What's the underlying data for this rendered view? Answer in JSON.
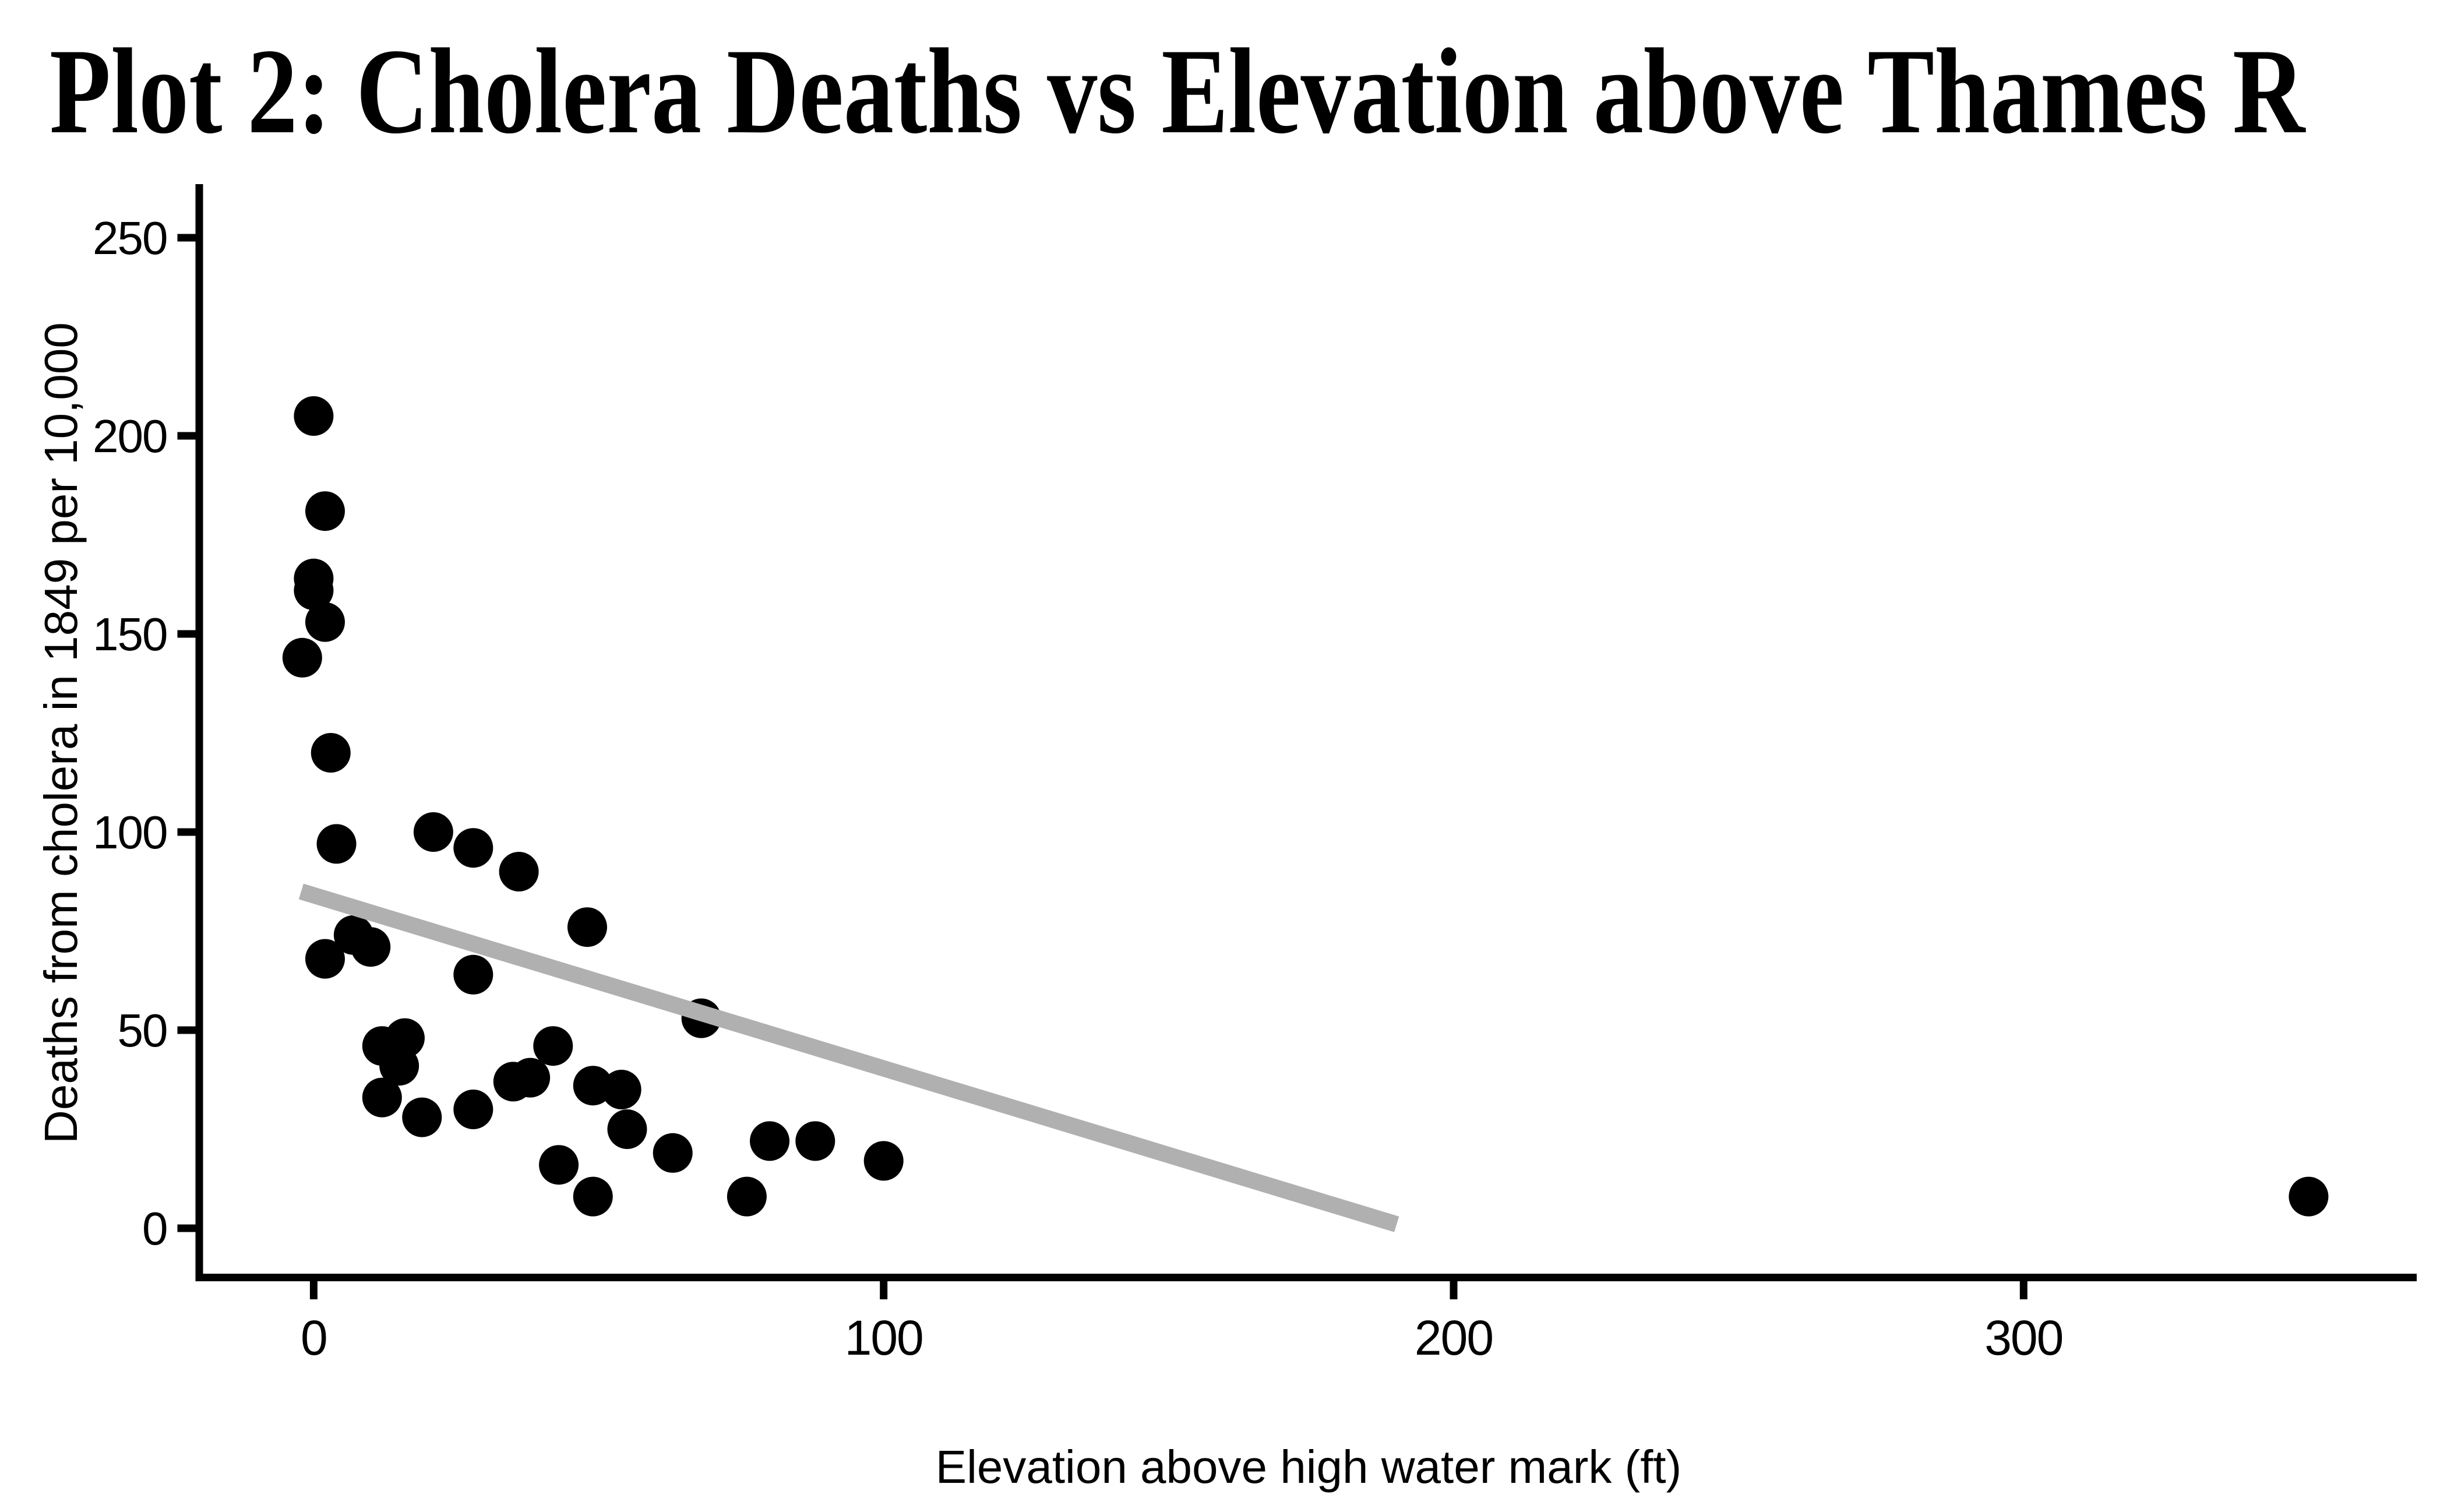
{
  "title": "Plot 2: Cholera Deaths vs Elevation above Thames R",
  "axes": {
    "xlabel": "Elevation above high water mark (ft)",
    "ylabel": "Deaths from cholera in 1849 per 10,000"
  },
  "colors": {
    "background": "#ffffff",
    "axis": "#000000",
    "tick_text": "#000000",
    "point": "#000000",
    "trend": "#b0b0b0"
  },
  "chart_data": {
    "type": "scatter",
    "title": "Plot 2: Cholera Deaths vs Elevation above Thames R",
    "xlabel": "Elevation above high water mark (ft)",
    "ylabel": "Deaths from cholera in 1849 per 10,000",
    "x_ticks": [
      0,
      100,
      200,
      300
    ],
    "y_ticks": [
      0,
      50,
      100,
      150,
      200,
      250
    ],
    "xlim": [
      -20,
      370
    ],
    "ylim": [
      -12.5,
      262.5
    ],
    "grid": false,
    "legend_position": "none",
    "point_color": "#000000",
    "trend_color": "#b0b0b0",
    "points": [
      {
        "x": 0,
        "y": 205
      },
      {
        "x": 2,
        "y": 181
      },
      {
        "x": 0,
        "y": 164
      },
      {
        "x": 0,
        "y": 161
      },
      {
        "x": 2,
        "y": 153
      },
      {
        "x": -2,
        "y": 144
      },
      {
        "x": 3,
        "y": 120
      },
      {
        "x": 4,
        "y": 97
      },
      {
        "x": 21,
        "y": 100
      },
      {
        "x": 28,
        "y": 96
      },
      {
        "x": 36,
        "y": 90
      },
      {
        "x": 48,
        "y": 76
      },
      {
        "x": 7,
        "y": 74
      },
      {
        "x": 10,
        "y": 71
      },
      {
        "x": 2,
        "y": 68
      },
      {
        "x": 28,
        "y": 64
      },
      {
        "x": 68,
        "y": 53
      },
      {
        "x": 12,
        "y": 46
      },
      {
        "x": 16,
        "y": 48
      },
      {
        "x": 15,
        "y": 41
      },
      {
        "x": 42,
        "y": 46
      },
      {
        "x": 12,
        "y": 33
      },
      {
        "x": 19,
        "y": 28
      },
      {
        "x": 28,
        "y": 30
      },
      {
        "x": 35,
        "y": 37
      },
      {
        "x": 38,
        "y": 38
      },
      {
        "x": 49,
        "y": 36
      },
      {
        "x": 54,
        "y": 35
      },
      {
        "x": 55,
        "y": 25
      },
      {
        "x": 63,
        "y": 19
      },
      {
        "x": 43,
        "y": 16
      },
      {
        "x": 49,
        "y": 8
      },
      {
        "x": 76,
        "y": 8
      },
      {
        "x": 80,
        "y": 22
      },
      {
        "x": 88,
        "y": 22
      },
      {
        "x": 100,
        "y": 17
      },
      {
        "x": 350,
        "y": 8
      }
    ],
    "trend_line": {
      "x1": -2.2,
      "y1": 85,
      "x2": 190,
      "y2": 1
    }
  }
}
